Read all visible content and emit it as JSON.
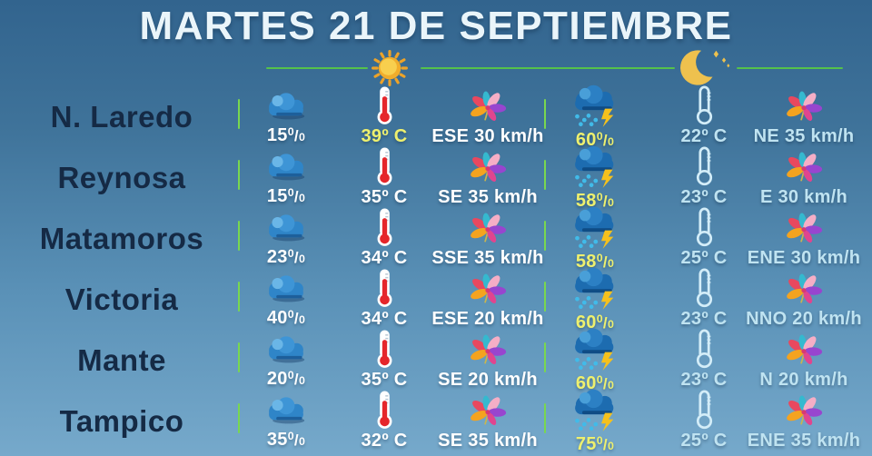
{
  "title": "MARTES 21 DE SEPTIEMBRE",
  "header": {
    "day_section_icon": "sun-icon",
    "night_section_icon": "moon-crescent-stars-icon"
  },
  "colors": {
    "background_top": "#32648e",
    "background_bottom": "#76a9cb",
    "accent_green": "#55c24b",
    "day_value_text": "#ffffff",
    "highlight_yellow": "#eef06e",
    "night_value_text": "#bfe3f1",
    "city_text": "#152a45"
  },
  "rows": [
    {
      "city": "N. Laredo",
      "day": {
        "pop": "15%",
        "temp": "39º C",
        "temp_highlight": true,
        "wind": "ESE 30 km/h"
      },
      "night": {
        "pop": "60%",
        "temp": "22º C",
        "wind": "NE 35 km/h"
      }
    },
    {
      "city": "Reynosa",
      "day": {
        "pop": "15%",
        "temp": "35º C",
        "wind": "SE 35 km/h"
      },
      "night": {
        "pop": "58%",
        "temp": "23º C",
        "wind": "E 30 km/h"
      }
    },
    {
      "city": "Matamoros",
      "day": {
        "pop": "23%",
        "temp": "34º C",
        "wind": "SSE 35 km/h"
      },
      "night": {
        "pop": "58%",
        "temp": "25º C",
        "wind": "ENE 30 km/h"
      }
    },
    {
      "city": "Victoria",
      "day": {
        "pop": "40%",
        "temp": "34º C",
        "wind": "ESE 20 km/h"
      },
      "night": {
        "pop": "60%",
        "temp": "23º C",
        "wind": "NNO 20 km/h"
      }
    },
    {
      "city": "Mante",
      "day": {
        "pop": "20%",
        "temp": "35º C",
        "wind": "SE 20 km/h"
      },
      "night": {
        "pop": "60%",
        "temp": "23º C",
        "wind": "N 20 km/h"
      }
    },
    {
      "city": "Tampico",
      "day": {
        "pop": "35%",
        "temp": "32º C",
        "wind": "SE 35 km/h"
      },
      "night": {
        "pop": "75%",
        "temp": "25º C",
        "wind": "ENE 35 km/h"
      }
    }
  ]
}
